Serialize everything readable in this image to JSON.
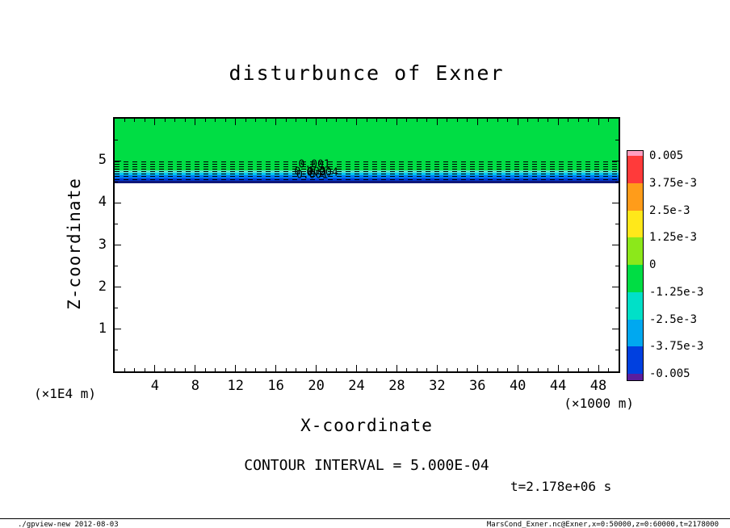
{
  "title": "disturbunce of Exner",
  "annotations": {
    "contour_interval": "CONTOUR INTERVAL = 5.000E-04",
    "time": "t=2.178e+06 s"
  },
  "footer": {
    "left": "./gpview-new  2012-08-03",
    "right": "MarsCond_Exner.nc@Exner,x=0:50000,z=0:60000,t=2178000"
  },
  "chart_data": {
    "type": "heatmap",
    "subtype": "filled-contour",
    "title": "disturbunce of Exner",
    "xlabel": "X-coordinate",
    "ylabel": "Z-coordinate",
    "x_unit": "(×1000 m)",
    "y_unit": "(×1E4 m)",
    "xlim": [
      0,
      50
    ],
    "ylim": [
      0,
      6
    ],
    "x_ticks": [
      4,
      8,
      12,
      16,
      20,
      24,
      28,
      32,
      36,
      40,
      44,
      48
    ],
    "y_ticks": [
      1,
      2,
      3,
      4,
      5
    ],
    "x_minor_step": 1,
    "y_minor_step": 0.5,
    "contour_interval": 0.0005,
    "grid": false,
    "bands": [
      {
        "color": "#00DD44",
        "z_top": 6.0,
        "z_bottom": 4.78
      },
      {
        "color": "#55E0C8",
        "z_top": 4.78,
        "z_bottom": 4.71
      },
      {
        "color": "#00C8F0",
        "z_top": 4.71,
        "z_bottom": 4.65
      },
      {
        "color": "#0078F0",
        "z_top": 4.65,
        "z_bottom": 4.59
      },
      {
        "color": "#0038D0",
        "z_top": 4.59,
        "z_bottom": 4.53
      },
      {
        "color": "#101878",
        "z_top": 4.53,
        "z_bottom": 4.47
      },
      {
        "color": "#FFFFFF",
        "z_top": 4.47,
        "z_bottom": 0.0
      }
    ],
    "contour_lines_z": [
      4.99,
      4.93,
      4.87,
      4.81,
      4.75,
      4.69,
      4.63,
      4.57
    ],
    "contour_labels": [
      {
        "text": "0.001",
        "x": 19.8,
        "z": 4.9
      },
      {
        "text": "0.002",
        "x": 19.4,
        "z": 4.73
      },
      {
        "text": "0.004",
        "x": 20.6,
        "z": 4.72
      },
      {
        "text": "0.001",
        "x": 19.6,
        "z": 4.65
      }
    ],
    "colorbar": {
      "labels": [
        "0.005",
        "3.75e-3",
        "2.5e-3",
        "1.25e-3",
        "0",
        "-1.25e-3",
        "-2.5e-3",
        "-3.75e-3",
        "-0.005"
      ],
      "colors": [
        "#FF9EC0",
        "#FF3A3A",
        "#FF9C1A",
        "#FFE81A",
        "#8CE81A",
        "#00DD44",
        "#00E0C8",
        "#00A8F0",
        "#0040E0",
        "#5A1E9E"
      ],
      "position": "right"
    }
  }
}
